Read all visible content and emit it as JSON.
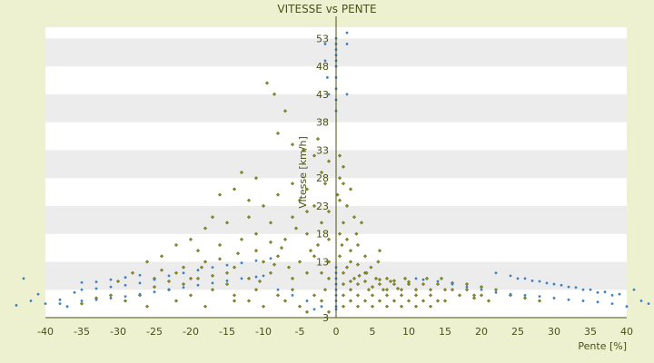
{
  "chart_data": {
    "type": "scatter",
    "title": "VITESSE vs PENTE",
    "xlabel": "Pente [%]",
    "ylabel": "Vitesse [km/h]",
    "xlim": [
      -40,
      40
    ],
    "ylim": [
      3,
      55
    ],
    "x_ticks": [
      -40,
      -35,
      -30,
      -25,
      -20,
      -15,
      -10,
      -5,
      0,
      5,
      10,
      15,
      20,
      25,
      30,
      35,
      40
    ],
    "y_ticks": [
      3,
      8,
      13,
      18,
      23,
      28,
      33,
      38,
      43,
      48,
      53
    ],
    "y_tick_labels": [
      "3",
      "",
      "13",
      "18",
      "23",
      "28",
      "33",
      "38",
      "43",
      "48",
      "53"
    ],
    "grid": "horizontal alternating bands",
    "colors": {
      "background": "#eef1cf",
      "plot_band_light": "#ffffff",
      "plot_band_dark": "#ececec",
      "axis": "#4b5016",
      "series_main": "#8a8f1a",
      "series_secondary": "#3b82c4"
    },
    "series": [
      {
        "color": "#8a8f1a",
        "marker": "diamond",
        "points": [
          [
            -9.5,
            45
          ],
          [
            -8.5,
            43
          ],
          [
            -7,
            40
          ],
          [
            -8,
            36
          ],
          [
            -6,
            34
          ],
          [
            -4.5,
            33
          ],
          [
            -3,
            32
          ],
          [
            -1,
            31
          ],
          [
            0.5,
            32
          ],
          [
            -2,
            29
          ],
          [
            -13,
            29
          ],
          [
            -11,
            28
          ],
          [
            -6,
            27
          ],
          [
            -4,
            26
          ],
          [
            0.5,
            28
          ],
          [
            1,
            27
          ],
          [
            2,
            26
          ],
          [
            -14,
            26
          ],
          [
            -16,
            25
          ],
          [
            -12,
            24
          ],
          [
            -8,
            25
          ],
          [
            -10,
            23
          ],
          [
            -5,
            24
          ],
          [
            -3,
            23
          ],
          [
            -1,
            22
          ],
          [
            1.5,
            23
          ],
          [
            0.5,
            24
          ],
          [
            -17,
            21
          ],
          [
            -15,
            20
          ],
          [
            -18,
            19
          ],
          [
            -12,
            21
          ],
          [
            -9,
            20
          ],
          [
            -6,
            21
          ],
          [
            -2,
            20
          ],
          [
            1,
            20
          ],
          [
            2.5,
            21
          ],
          [
            -20,
            17
          ],
          [
            -22,
            16
          ],
          [
            -19,
            15
          ],
          [
            -16,
            16
          ],
          [
            -13,
            17
          ],
          [
            -11,
            18
          ],
          [
            -7,
            17
          ],
          [
            -4,
            18
          ],
          [
            -1,
            17
          ],
          [
            1.5,
            17
          ],
          [
            3,
            16
          ],
          [
            -24,
            14
          ],
          [
            -26,
            13
          ],
          [
            -21,
            12
          ],
          [
            -18,
            13
          ],
          [
            -14,
            12
          ],
          [
            -10,
            13
          ],
          [
            -8,
            14
          ],
          [
            -5,
            13
          ],
          [
            -3,
            14
          ],
          [
            0.5,
            14
          ],
          [
            2,
            13
          ],
          [
            4,
            14
          ],
          [
            6,
            15
          ],
          [
            -28,
            11
          ],
          [
            -25,
            10
          ],
          [
            -22,
            11
          ],
          [
            -19,
            10
          ],
          [
            -15,
            9
          ],
          [
            -12,
            10
          ],
          [
            -9,
            11
          ],
          [
            -6,
            10
          ],
          [
            -4,
            11
          ],
          [
            -1,
            10
          ],
          [
            1,
            11
          ],
          [
            2.5,
            10
          ],
          [
            4,
            11
          ],
          [
            5.5,
            10
          ],
          [
            7,
            10
          ],
          [
            -27,
            7
          ],
          [
            -23,
            8
          ],
          [
            -20,
            7
          ],
          [
            -17,
            8
          ],
          [
            -14,
            7
          ],
          [
            -11,
            8
          ],
          [
            -8,
            7
          ],
          [
            -6,
            8
          ],
          [
            -3,
            7
          ],
          [
            -1.5,
            8
          ],
          [
            1,
            9
          ],
          [
            2,
            8
          ],
          [
            3,
            9
          ],
          [
            4.5,
            8
          ],
          [
            6,
            9
          ],
          [
            7,
            8
          ],
          [
            8,
            9
          ],
          [
            9,
            8
          ],
          [
            10,
            9
          ],
          [
            11,
            8
          ],
          [
            12,
            9
          ],
          [
            13,
            8
          ],
          [
            14,
            9
          ],
          [
            15,
            8
          ],
          [
            16,
            8
          ],
          [
            17,
            7
          ],
          [
            18,
            8
          ],
          [
            19,
            7
          ],
          [
            20,
            7
          ],
          [
            -26,
            5
          ],
          [
            -22,
            6
          ],
          [
            -18,
            5
          ],
          [
            -14,
            6
          ],
          [
            -10,
            5
          ],
          [
            -7,
            6
          ],
          [
            -5,
            5
          ],
          [
            -2,
            6
          ],
          [
            1,
            7
          ],
          [
            2,
            6
          ],
          [
            3,
            7
          ],
          [
            4,
            6
          ],
          [
            5,
            7
          ],
          [
            6,
            6
          ],
          [
            7,
            7
          ],
          [
            8,
            6
          ],
          [
            9,
            7
          ],
          [
            10,
            6
          ],
          [
            11,
            7
          ],
          [
            12,
            6
          ],
          [
            13,
            7
          ],
          [
            14,
            6
          ],
          [
            15,
            6
          ],
          [
            -4,
            4
          ],
          [
            -1,
            4
          ],
          [
            1,
            5
          ],
          [
            3,
            5
          ],
          [
            5,
            5
          ],
          [
            7,
            5
          ],
          [
            9,
            5
          ],
          [
            11,
            5
          ],
          [
            13,
            5
          ],
          [
            2,
            9.5
          ],
          [
            4,
            9.5
          ],
          [
            6,
            9.8
          ],
          [
            8,
            9.6
          ],
          [
            10,
            9.4
          ],
          [
            1.5,
            12
          ],
          [
            3,
            12.5
          ],
          [
            2,
            15
          ],
          [
            -2.5,
            16
          ],
          [
            -1,
            13
          ],
          [
            -7.5,
            15.5
          ],
          [
            -9,
            16.5
          ],
          [
            -11,
            15
          ],
          [
            -13.5,
            14.5
          ],
          [
            -16,
            13.5
          ],
          [
            -18.5,
            12
          ],
          [
            -23,
            9.5
          ],
          [
            -25,
            8.5
          ],
          [
            -30,
            9.5
          ],
          [
            -31,
            7
          ],
          [
            -33,
            6.5
          ],
          [
            -29,
            6
          ],
          [
            -35,
            5.5
          ],
          [
            16,
            9.2
          ],
          [
            18,
            9
          ],
          [
            20,
            8.5
          ],
          [
            22,
            8
          ],
          [
            24,
            7
          ],
          [
            26,
            6.5
          ],
          [
            28,
            6
          ],
          [
            21,
            6
          ],
          [
            19,
            6.5
          ],
          [
            0.5,
            18
          ],
          [
            1,
            30
          ],
          [
            -2.5,
            35
          ],
          [
            -1.5,
            27
          ],
          [
            0.2,
            25
          ],
          [
            -4,
            22
          ],
          [
            -5.5,
            19
          ],
          [
            -3.5,
            15
          ],
          [
            -6.5,
            12
          ],
          [
            -8.5,
            12.5
          ],
          [
            -2,
            11
          ],
          [
            0.8,
            16
          ],
          [
            2.8,
            18
          ],
          [
            3.5,
            20
          ],
          [
            4.2,
            11
          ],
          [
            5,
            8.5
          ],
          [
            6.5,
            8
          ],
          [
            7.5,
            9.5
          ],
          [
            8.5,
            8.2
          ],
          [
            9.5,
            10
          ],
          [
            12.5,
            10
          ],
          [
            14.5,
            10
          ],
          [
            3.2,
            10.5
          ],
          [
            4.8,
            12
          ],
          [
            5.8,
            13
          ],
          [
            -12,
            6
          ],
          [
            -15,
            11
          ],
          [
            -17,
            10.5
          ],
          [
            -20,
            10
          ],
          [
            -21,
            9
          ],
          [
            -24,
            11.5
          ],
          [
            -10.5,
            9.5
          ]
        ]
      },
      {
        "color": "#3b82c4",
        "marker": "dot",
        "points": [
          [
            -35,
            6
          ],
          [
            -33,
            6.2
          ],
          [
            -31,
            6.5
          ],
          [
            -29,
            6.8
          ],
          [
            -27,
            7.2
          ],
          [
            -25,
            7.6
          ],
          [
            -23,
            8
          ],
          [
            -21,
            8.4
          ],
          [
            -19,
            8.8
          ],
          [
            -17,
            9.2
          ],
          [
            -15,
            9.6
          ],
          [
            -13,
            10
          ],
          [
            -11,
            10.3
          ],
          [
            -10,
            10.5
          ],
          [
            -35,
            8
          ],
          [
            -33,
            8.2
          ],
          [
            -31,
            8.5
          ],
          [
            -29,
            8.8
          ],
          [
            -27,
            9.2
          ],
          [
            -25,
            9.8
          ],
          [
            -23,
            10.5
          ],
          [
            -21,
            11
          ],
          [
            -19,
            11.5
          ],
          [
            -17,
            12
          ],
          [
            -15,
            12.4
          ],
          [
            -13,
            12.8
          ],
          [
            -11,
            13.2
          ],
          [
            -9,
            13.6
          ],
          [
            -35,
            9.3
          ],
          [
            -33,
            9.4
          ],
          [
            -31,
            9.8
          ],
          [
            -29,
            10.2
          ],
          [
            -27,
            10.6
          ],
          [
            -40,
            5.5
          ],
          [
            -42,
            6
          ],
          [
            -44,
            5.2
          ],
          [
            -38,
            6.2
          ],
          [
            -43,
            10
          ],
          [
            -41,
            7.2
          ],
          [
            -37,
            5
          ],
          [
            -36,
            7.5
          ],
          [
            -38,
            5.5
          ],
          [
            25,
            10
          ],
          [
            27,
            9.6
          ],
          [
            29,
            9.2
          ],
          [
            31,
            8.8
          ],
          [
            33,
            8.4
          ],
          [
            35,
            8
          ],
          [
            37,
            7.6
          ],
          [
            39,
            7.2
          ],
          [
            22,
            11
          ],
          [
            24,
            10.5
          ],
          [
            26,
            10
          ],
          [
            28,
            9.5
          ],
          [
            30,
            9
          ],
          [
            32,
            8.5
          ],
          [
            34,
            8
          ],
          [
            36,
            7.5
          ],
          [
            38,
            7
          ],
          [
            20,
            8
          ],
          [
            22,
            7.5
          ],
          [
            24,
            7.2
          ],
          [
            26,
            7
          ],
          [
            28,
            6.8
          ],
          [
            30,
            6.5
          ],
          [
            32,
            6.2
          ],
          [
            34,
            6
          ],
          [
            36,
            5.8
          ],
          [
            38,
            5.5
          ],
          [
            40,
            5
          ],
          [
            42,
            6
          ],
          [
            43,
            5.5
          ],
          [
            41,
            8
          ],
          [
            44,
            7
          ],
          [
            0,
            53
          ],
          [
            0,
            52
          ],
          [
            0,
            51
          ],
          [
            0,
            50
          ],
          [
            0,
            49
          ],
          [
            0,
            48
          ],
          [
            0,
            46
          ],
          [
            0,
            44
          ],
          [
            0,
            42
          ],
          [
            0,
            40
          ],
          [
            1.5,
            54
          ],
          [
            1.5,
            52
          ],
          [
            -1.5,
            52
          ],
          [
            -1.5,
            49
          ],
          [
            -1.2,
            46
          ],
          [
            1.5,
            43
          ],
          [
            -1,
            43
          ],
          [
            0,
            10
          ],
          [
            0,
            9
          ],
          [
            0,
            8
          ],
          [
            0,
            7
          ],
          [
            0,
            6
          ],
          [
            0,
            5
          ],
          [
            0,
            4.5
          ],
          [
            0,
            11
          ],
          [
            0,
            12
          ],
          [
            -3,
            4.5
          ],
          [
            -4,
            6
          ],
          [
            -2,
            5
          ],
          [
            -6,
            7
          ],
          [
            -8,
            8
          ],
          [
            14,
            9.5
          ],
          [
            16,
            9
          ],
          [
            18,
            8.5
          ],
          [
            11,
            10
          ],
          [
            12,
            9.8
          ]
        ]
      }
    ]
  }
}
